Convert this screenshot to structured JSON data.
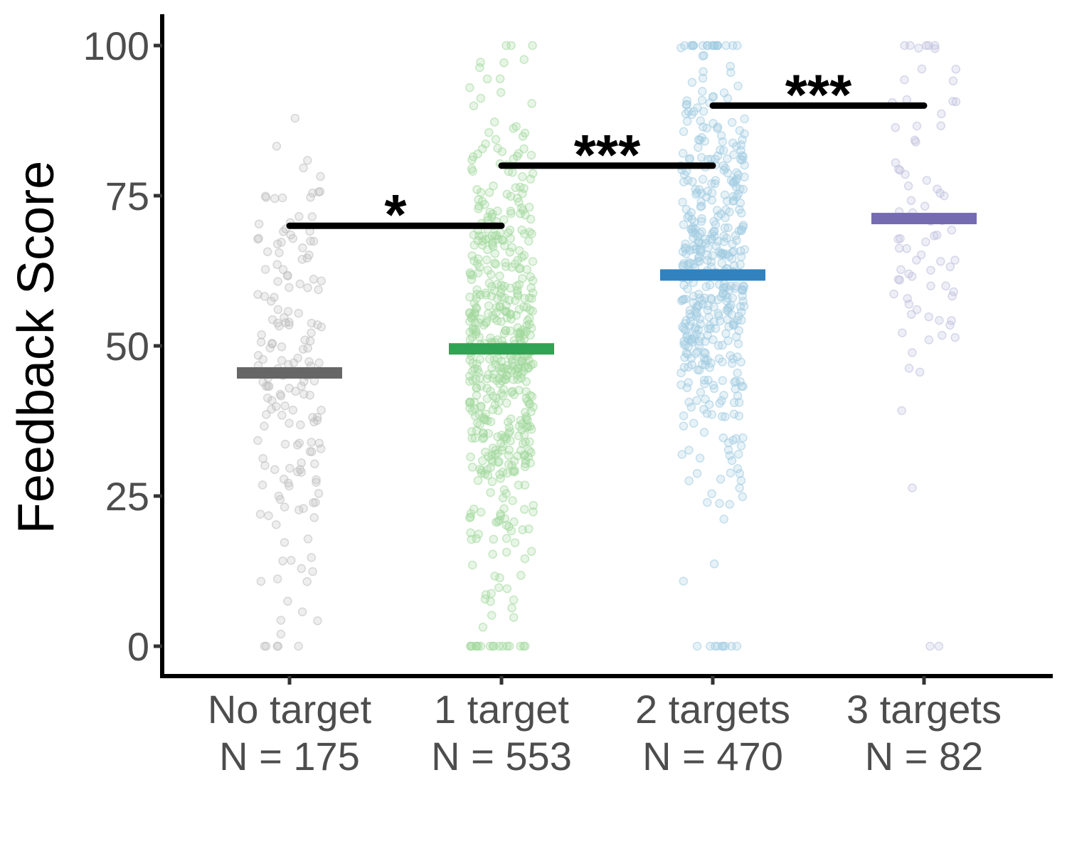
{
  "chart_data": {
    "type": "scatter",
    "ylabel": "Feedback Score",
    "xlabel": "",
    "ylim": [
      -5,
      105
    ],
    "y_ticks": [
      0,
      25,
      50,
      75,
      100
    ],
    "grid": false,
    "legend": "none",
    "groups": [
      {
        "name": "No target",
        "n_label": "N = 175",
        "n": 175,
        "mean": 45.5,
        "color": "#666666",
        "point_color": "#bdbdbd"
      },
      {
        "name": "1 target",
        "n_label": "N = 553",
        "n": 553,
        "mean": 49.5,
        "color": "#31a354",
        "point_color": "#a1d99b"
      },
      {
        "name": "2 targets",
        "n_label": "N = 470",
        "n": 470,
        "mean": 61.8,
        "color": "#3182bd",
        "point_color": "#9ecae1"
      },
      {
        "name": "3 targets",
        "n_label": "N = 82",
        "n": 82,
        "mean": 71.2,
        "color": "#756bb1",
        "point_color": "#bcbddc"
      }
    ],
    "significance": [
      {
        "from": 0,
        "to": 1,
        "y": 70,
        "label": "*"
      },
      {
        "from": 1,
        "to": 2,
        "y": 80,
        "label": "***"
      },
      {
        "from": 2,
        "to": 3,
        "y": 90,
        "label": "***"
      }
    ]
  }
}
